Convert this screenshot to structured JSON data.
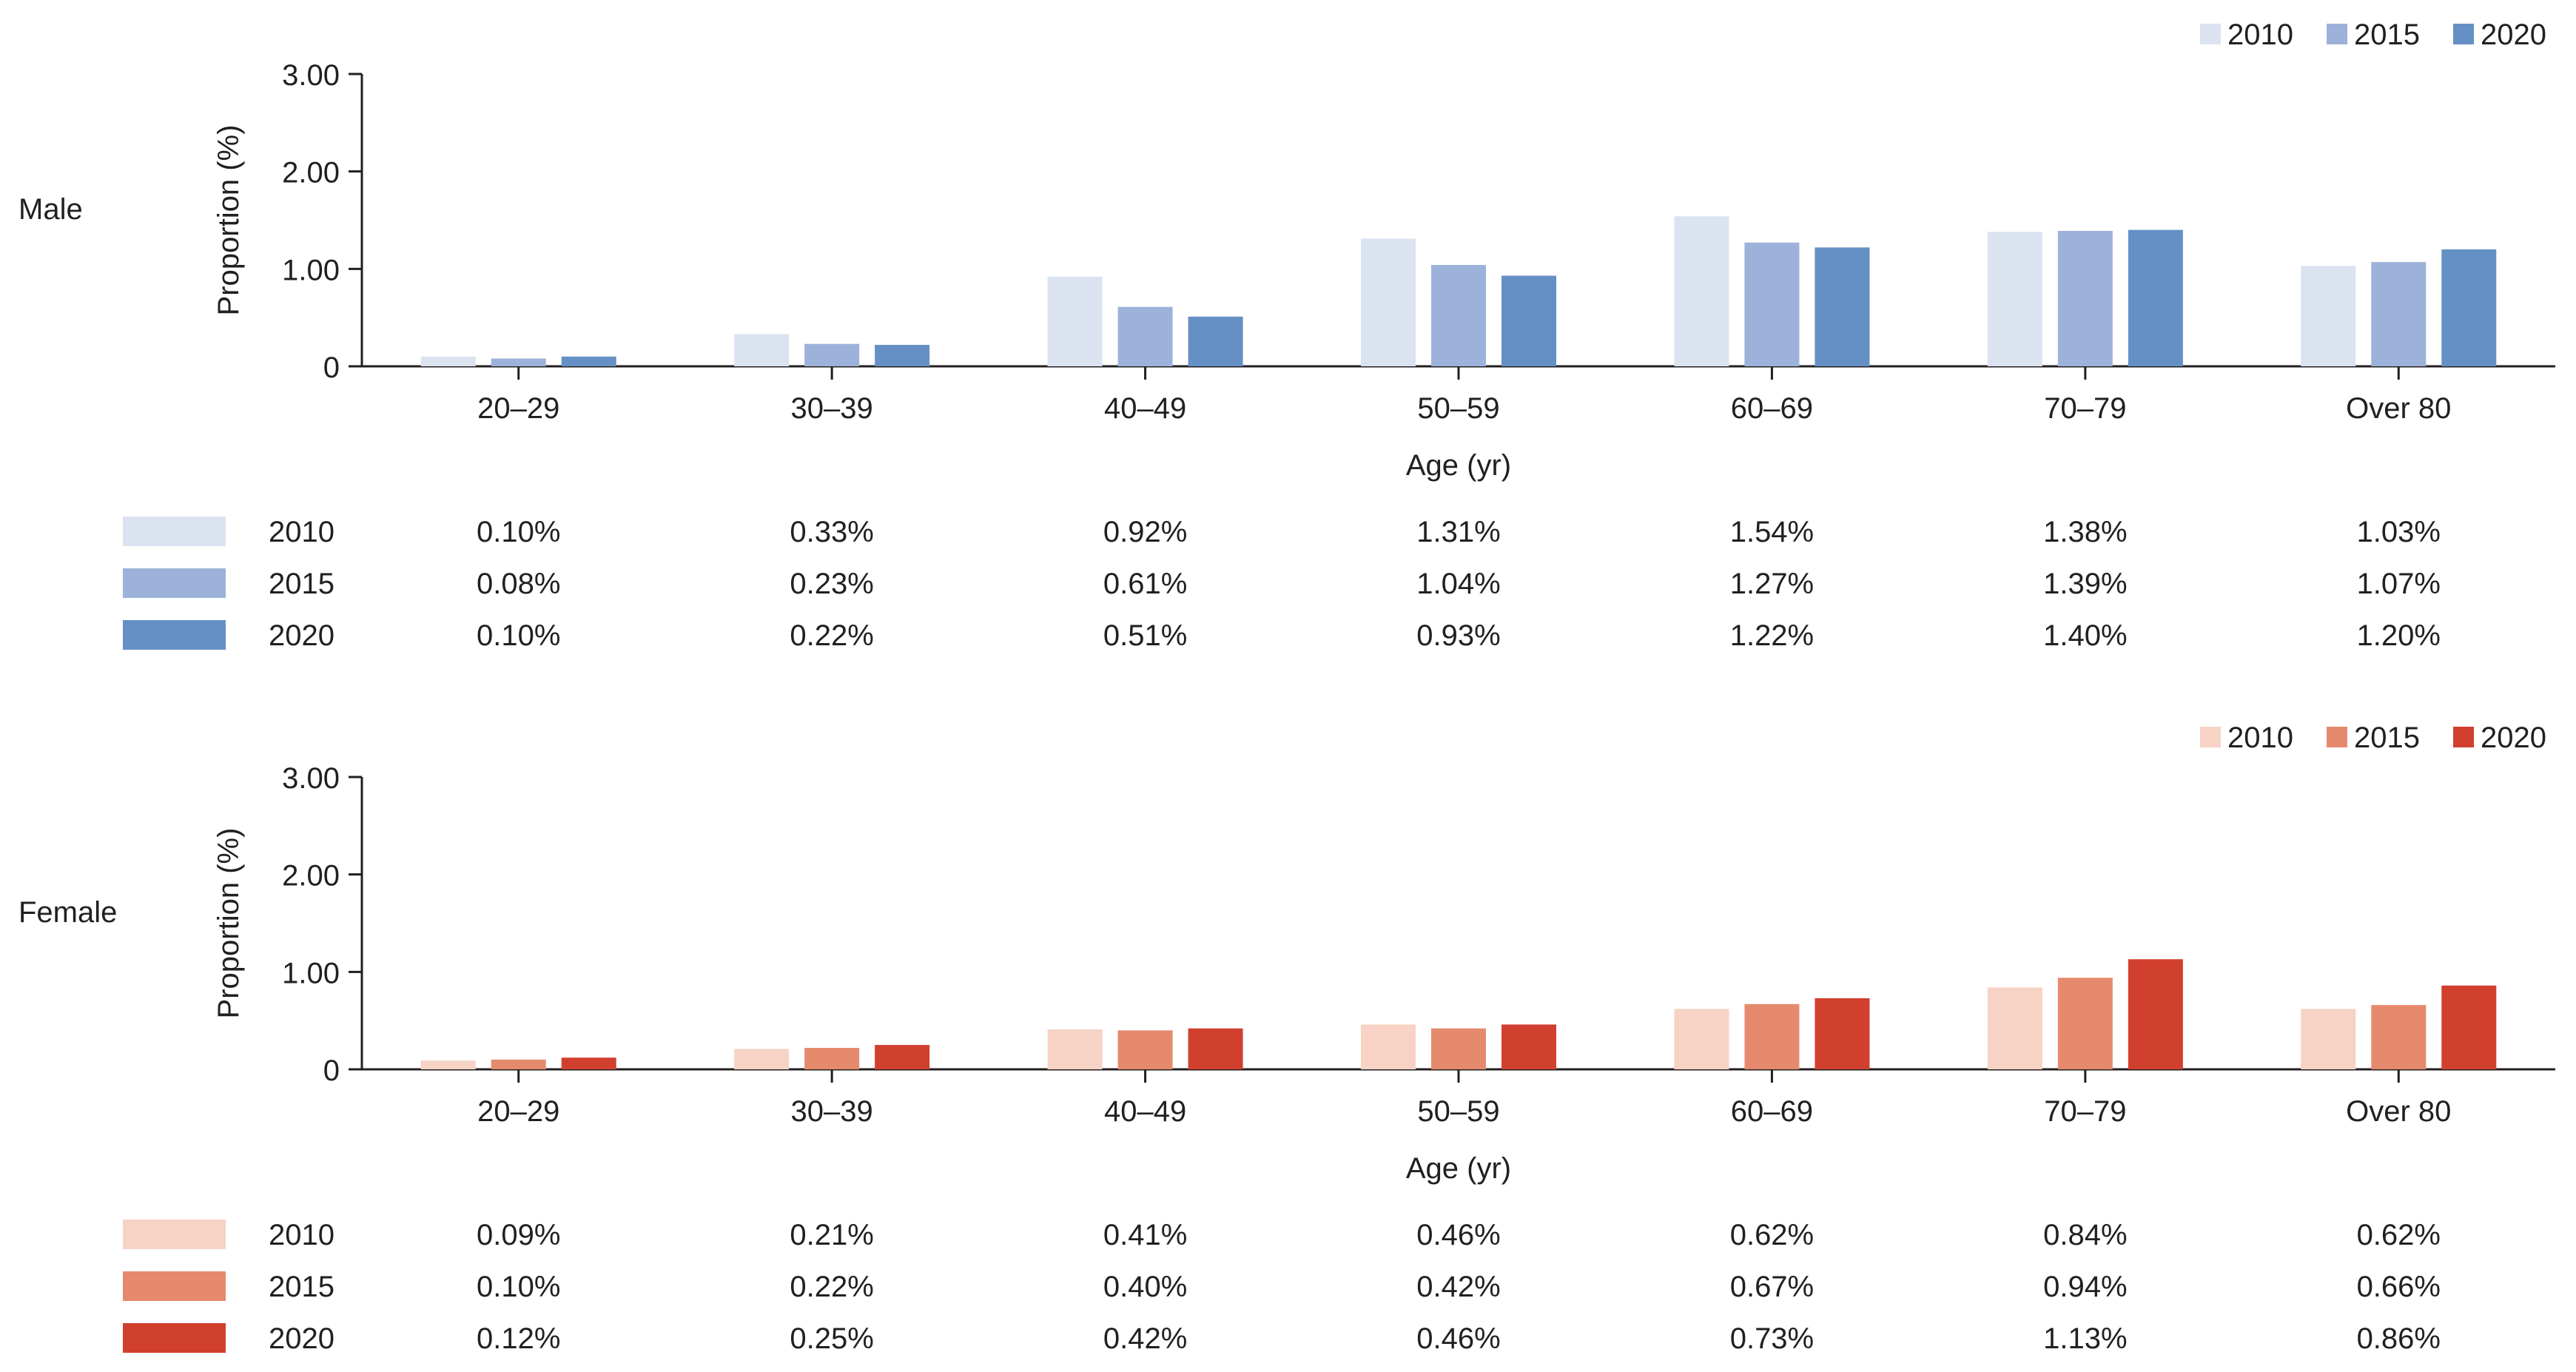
{
  "chart_data": [
    {
      "type": "bar",
      "panel_label": "Male",
      "panel_label_color": "#5b86be",
      "categories": [
        "20–29",
        "30–39",
        "40–49",
        "50–59",
        "60–69",
        "70–79",
        "Over 80"
      ],
      "xlabel": "Age (yr)",
      "ylabel": "Proportion (%)",
      "ylim": [
        0,
        3
      ],
      "yticks": [
        "0",
        "1.00",
        "2.00",
        "3.00"
      ],
      "legend_position": "top-right",
      "series": [
        {
          "name": "2010",
          "color": "#dbe3f1",
          "values": [
            0.1,
            0.33,
            0.92,
            1.31,
            1.54,
            1.38,
            1.03
          ],
          "labels": [
            "0.10%",
            "0.33%",
            "0.92%",
            "1.31%",
            "1.54%",
            "1.38%",
            "1.03%"
          ]
        },
        {
          "name": "2015",
          "color": "#9db2da",
          "values": [
            0.08,
            0.23,
            0.61,
            1.04,
            1.27,
            1.39,
            1.07
          ],
          "labels": [
            "0.08%",
            "0.23%",
            "0.61%",
            "1.04%",
            "1.27%",
            "1.39%",
            "1.07%"
          ]
        },
        {
          "name": "2020",
          "color": "#6590c5",
          "values": [
            0.1,
            0.22,
            0.51,
            0.93,
            1.22,
            1.4,
            1.2
          ],
          "labels": [
            "0.10%",
            "0.22%",
            "0.51%",
            "0.93%",
            "1.22%",
            "1.40%",
            "1.20%"
          ]
        }
      ]
    },
    {
      "type": "bar",
      "panel_label": "Female",
      "panel_label_color": "#d2412f",
      "categories": [
        "20–29",
        "30–39",
        "40–49",
        "50–59",
        "60–69",
        "70–79",
        "Over 80"
      ],
      "xlabel": "Age (yr)",
      "ylabel": "Proportion (%)",
      "ylim": [
        0,
        3
      ],
      "yticks": [
        "0",
        "1.00",
        "2.00",
        "3.00"
      ],
      "legend_position": "top-right",
      "series": [
        {
          "name": "2010",
          "color": "#f6d3c4",
          "values": [
            0.09,
            0.21,
            0.41,
            0.46,
            0.62,
            0.84,
            0.62
          ],
          "labels": [
            "0.09%",
            "0.21%",
            "0.41%",
            "0.46%",
            "0.62%",
            "0.84%",
            "0.62%"
          ]
        },
        {
          "name": "2015",
          "color": "#e68a6e",
          "values": [
            0.1,
            0.22,
            0.4,
            0.42,
            0.67,
            0.94,
            0.66
          ],
          "labels": [
            "0.10%",
            "0.22%",
            "0.40%",
            "0.42%",
            "0.67%",
            "0.94%",
            "0.66%"
          ]
        },
        {
          "name": "2020",
          "color": "#d13f2f",
          "values": [
            0.12,
            0.25,
            0.42,
            0.46,
            0.73,
            1.13,
            0.86
          ],
          "labels": [
            "0.12%",
            "0.25%",
            "0.42%",
            "0.46%",
            "0.73%",
            "1.13%",
            "0.86%"
          ]
        }
      ]
    }
  ]
}
